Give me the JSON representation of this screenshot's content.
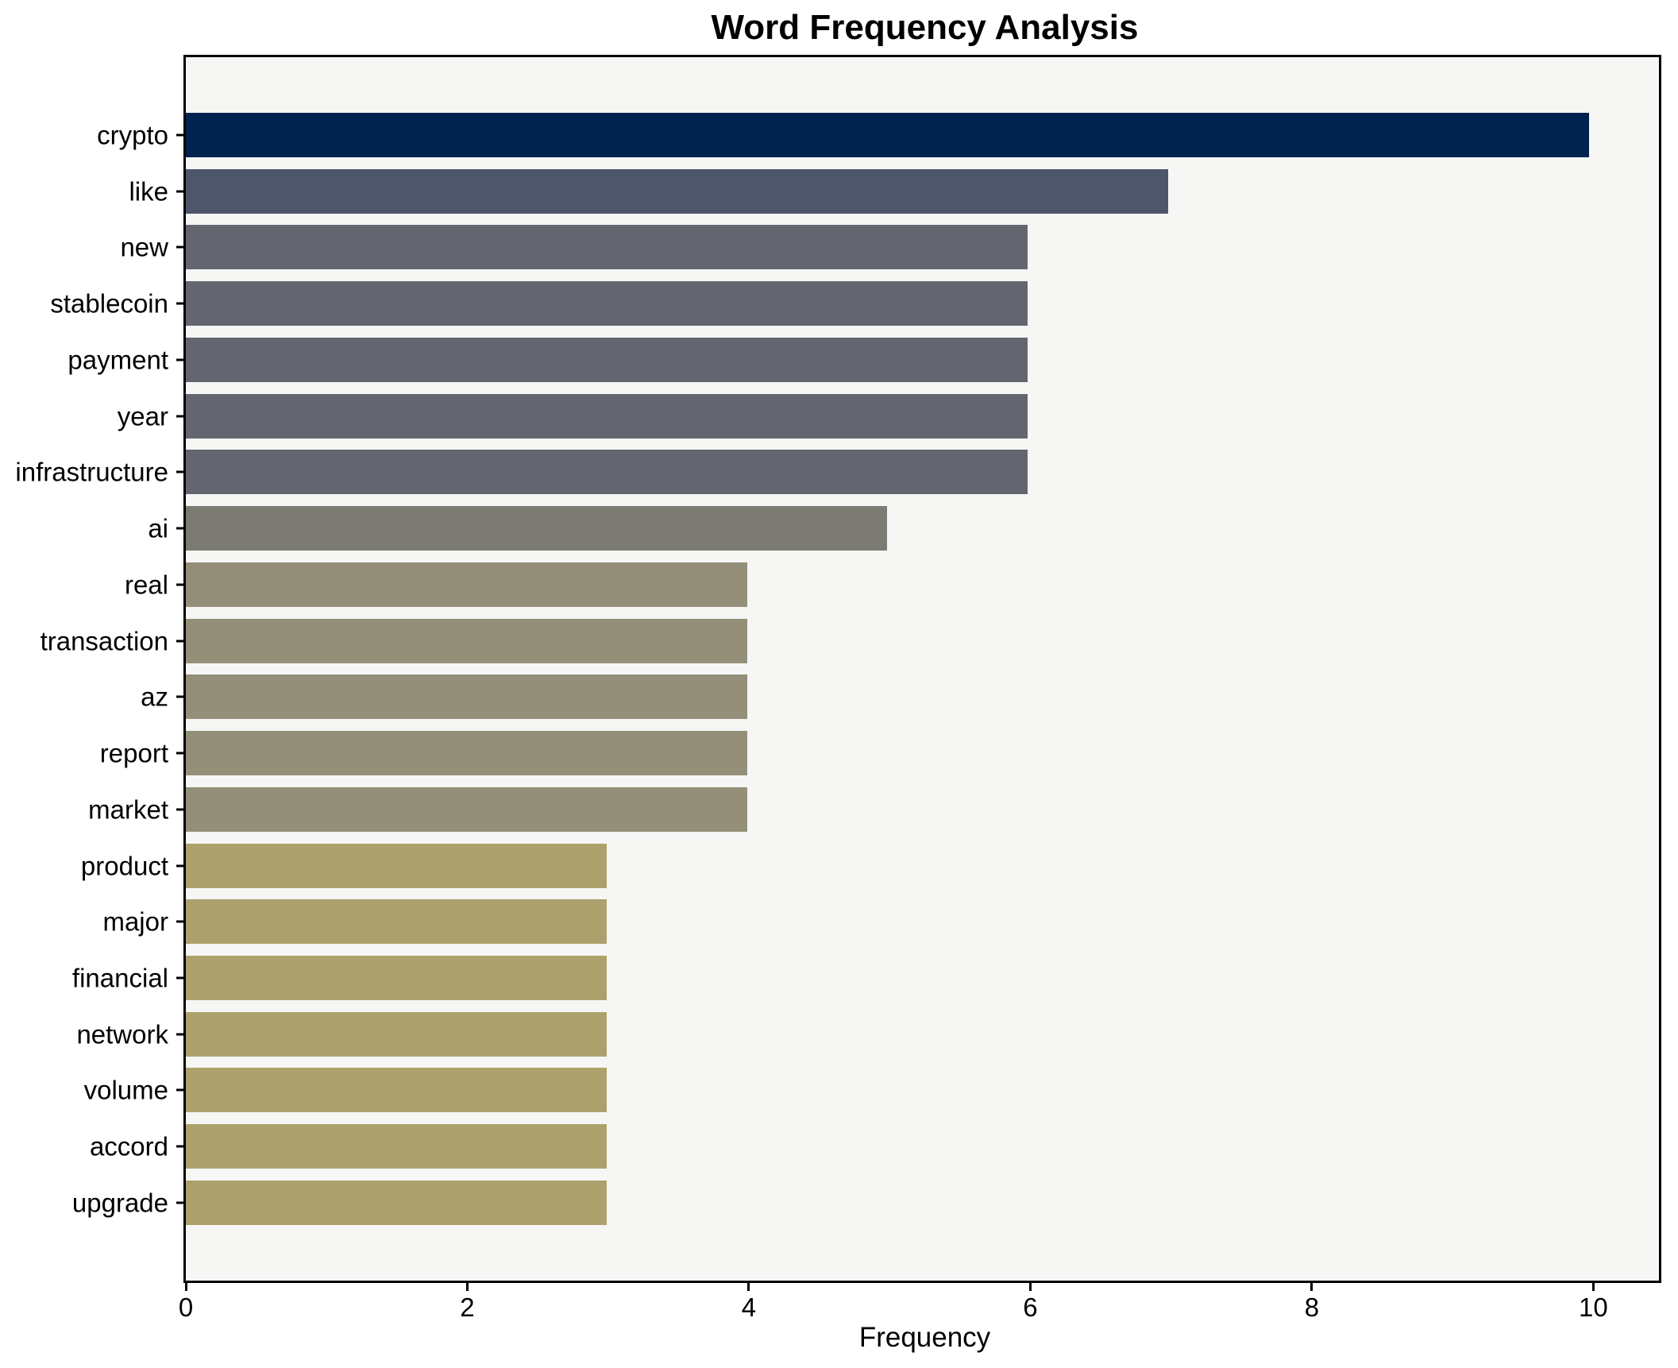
{
  "chart_data": {
    "type": "bar",
    "orientation": "horizontal",
    "title": "Word Frequency Analysis",
    "xlabel": "Frequency",
    "ylabel": "",
    "categories": [
      "crypto",
      "like",
      "new",
      "stablecoin",
      "payment",
      "year",
      "infrastructure",
      "ai",
      "real",
      "transaction",
      "az",
      "report",
      "market",
      "product",
      "major",
      "financial",
      "network",
      "volume",
      "accord",
      "upgrade"
    ],
    "values": [
      10,
      7,
      6,
      6,
      6,
      6,
      6,
      5,
      4,
      4,
      4,
      4,
      4,
      3,
      3,
      3,
      3,
      3,
      3,
      3
    ],
    "bar_colors": [
      "#00224e",
      "#4e566c",
      "#63666e",
      "#63666e",
      "#63666e",
      "#63666e",
      "#63666e",
      "#7b7b74",
      "#948f78",
      "#948f78",
      "#948f78",
      "#948f78",
      "#948f78",
      "#aca16c",
      "#aca16c",
      "#aca16c",
      "#aca16c",
      "#aca16c",
      "#aca16c",
      "#aca16c"
    ],
    "x_ticks": [
      0,
      2,
      4,
      6,
      8,
      10
    ],
    "xlim": [
      0,
      10.5
    ],
    "grid": false,
    "legend_position": "none",
    "plot_background": "#f6f6f5",
    "figure_background": "#ffffff",
    "spine_color": "#000000"
  }
}
